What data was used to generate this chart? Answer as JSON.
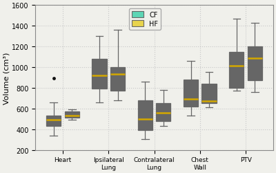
{
  "categories": [
    "Heart",
    "Ipsilateral\nLung",
    "Contralateral\nLung",
    "Chest\nWall",
    "PTV"
  ],
  "cf_boxes": [
    {
      "whislo": 340,
      "q1": 430,
      "med": 490,
      "q3": 530,
      "whishi": 660,
      "fliers": [
        890
      ]
    },
    {
      "whislo": 660,
      "q1": 790,
      "med": 920,
      "q3": 1080,
      "whishi": 1300,
      "fliers": []
    },
    {
      "whislo": 305,
      "q1": 390,
      "med": 500,
      "q3": 680,
      "whishi": 860,
      "fliers": []
    },
    {
      "whislo": 530,
      "q1": 620,
      "med": 690,
      "q3": 880,
      "whishi": 1060,
      "fliers": []
    },
    {
      "whislo": 770,
      "q1": 800,
      "med": 1010,
      "q3": 1150,
      "whishi": 1470,
      "fliers": []
    }
  ],
  "hf_boxes": [
    {
      "whislo": 490,
      "q1": 515,
      "med": 535,
      "q3": 575,
      "whishi": 590,
      "fliers": []
    },
    {
      "whislo": 680,
      "q1": 770,
      "med": 930,
      "q3": 1000,
      "whishi": 1360,
      "fliers": []
    },
    {
      "whislo": 430,
      "q1": 480,
      "med": 560,
      "q3": 650,
      "whishi": 780,
      "fliers": []
    },
    {
      "whislo": 610,
      "q1": 650,
      "med": 670,
      "q3": 840,
      "whishi": 950,
      "fliers": []
    },
    {
      "whislo": 760,
      "q1": 870,
      "med": 1090,
      "q3": 1200,
      "whishi": 1430,
      "fliers": []
    }
  ],
  "cf_color": "#5dd6b5",
  "hf_color": "#e8d44d",
  "box_edge_color": "#666666",
  "whisker_color": "#666666",
  "median_color": "#d4a800",
  "ylim": [
    200,
    1600
  ],
  "yticks": [
    200,
    400,
    600,
    800,
    1000,
    1200,
    1400,
    1600
  ],
  "ylabel": "Volume (cm³)",
  "legend_cf": "CF",
  "legend_hf": "HF",
  "bg_color": "#f0f0eb",
  "grid_color": "#c8c8c8",
  "flier_color": "#111111"
}
